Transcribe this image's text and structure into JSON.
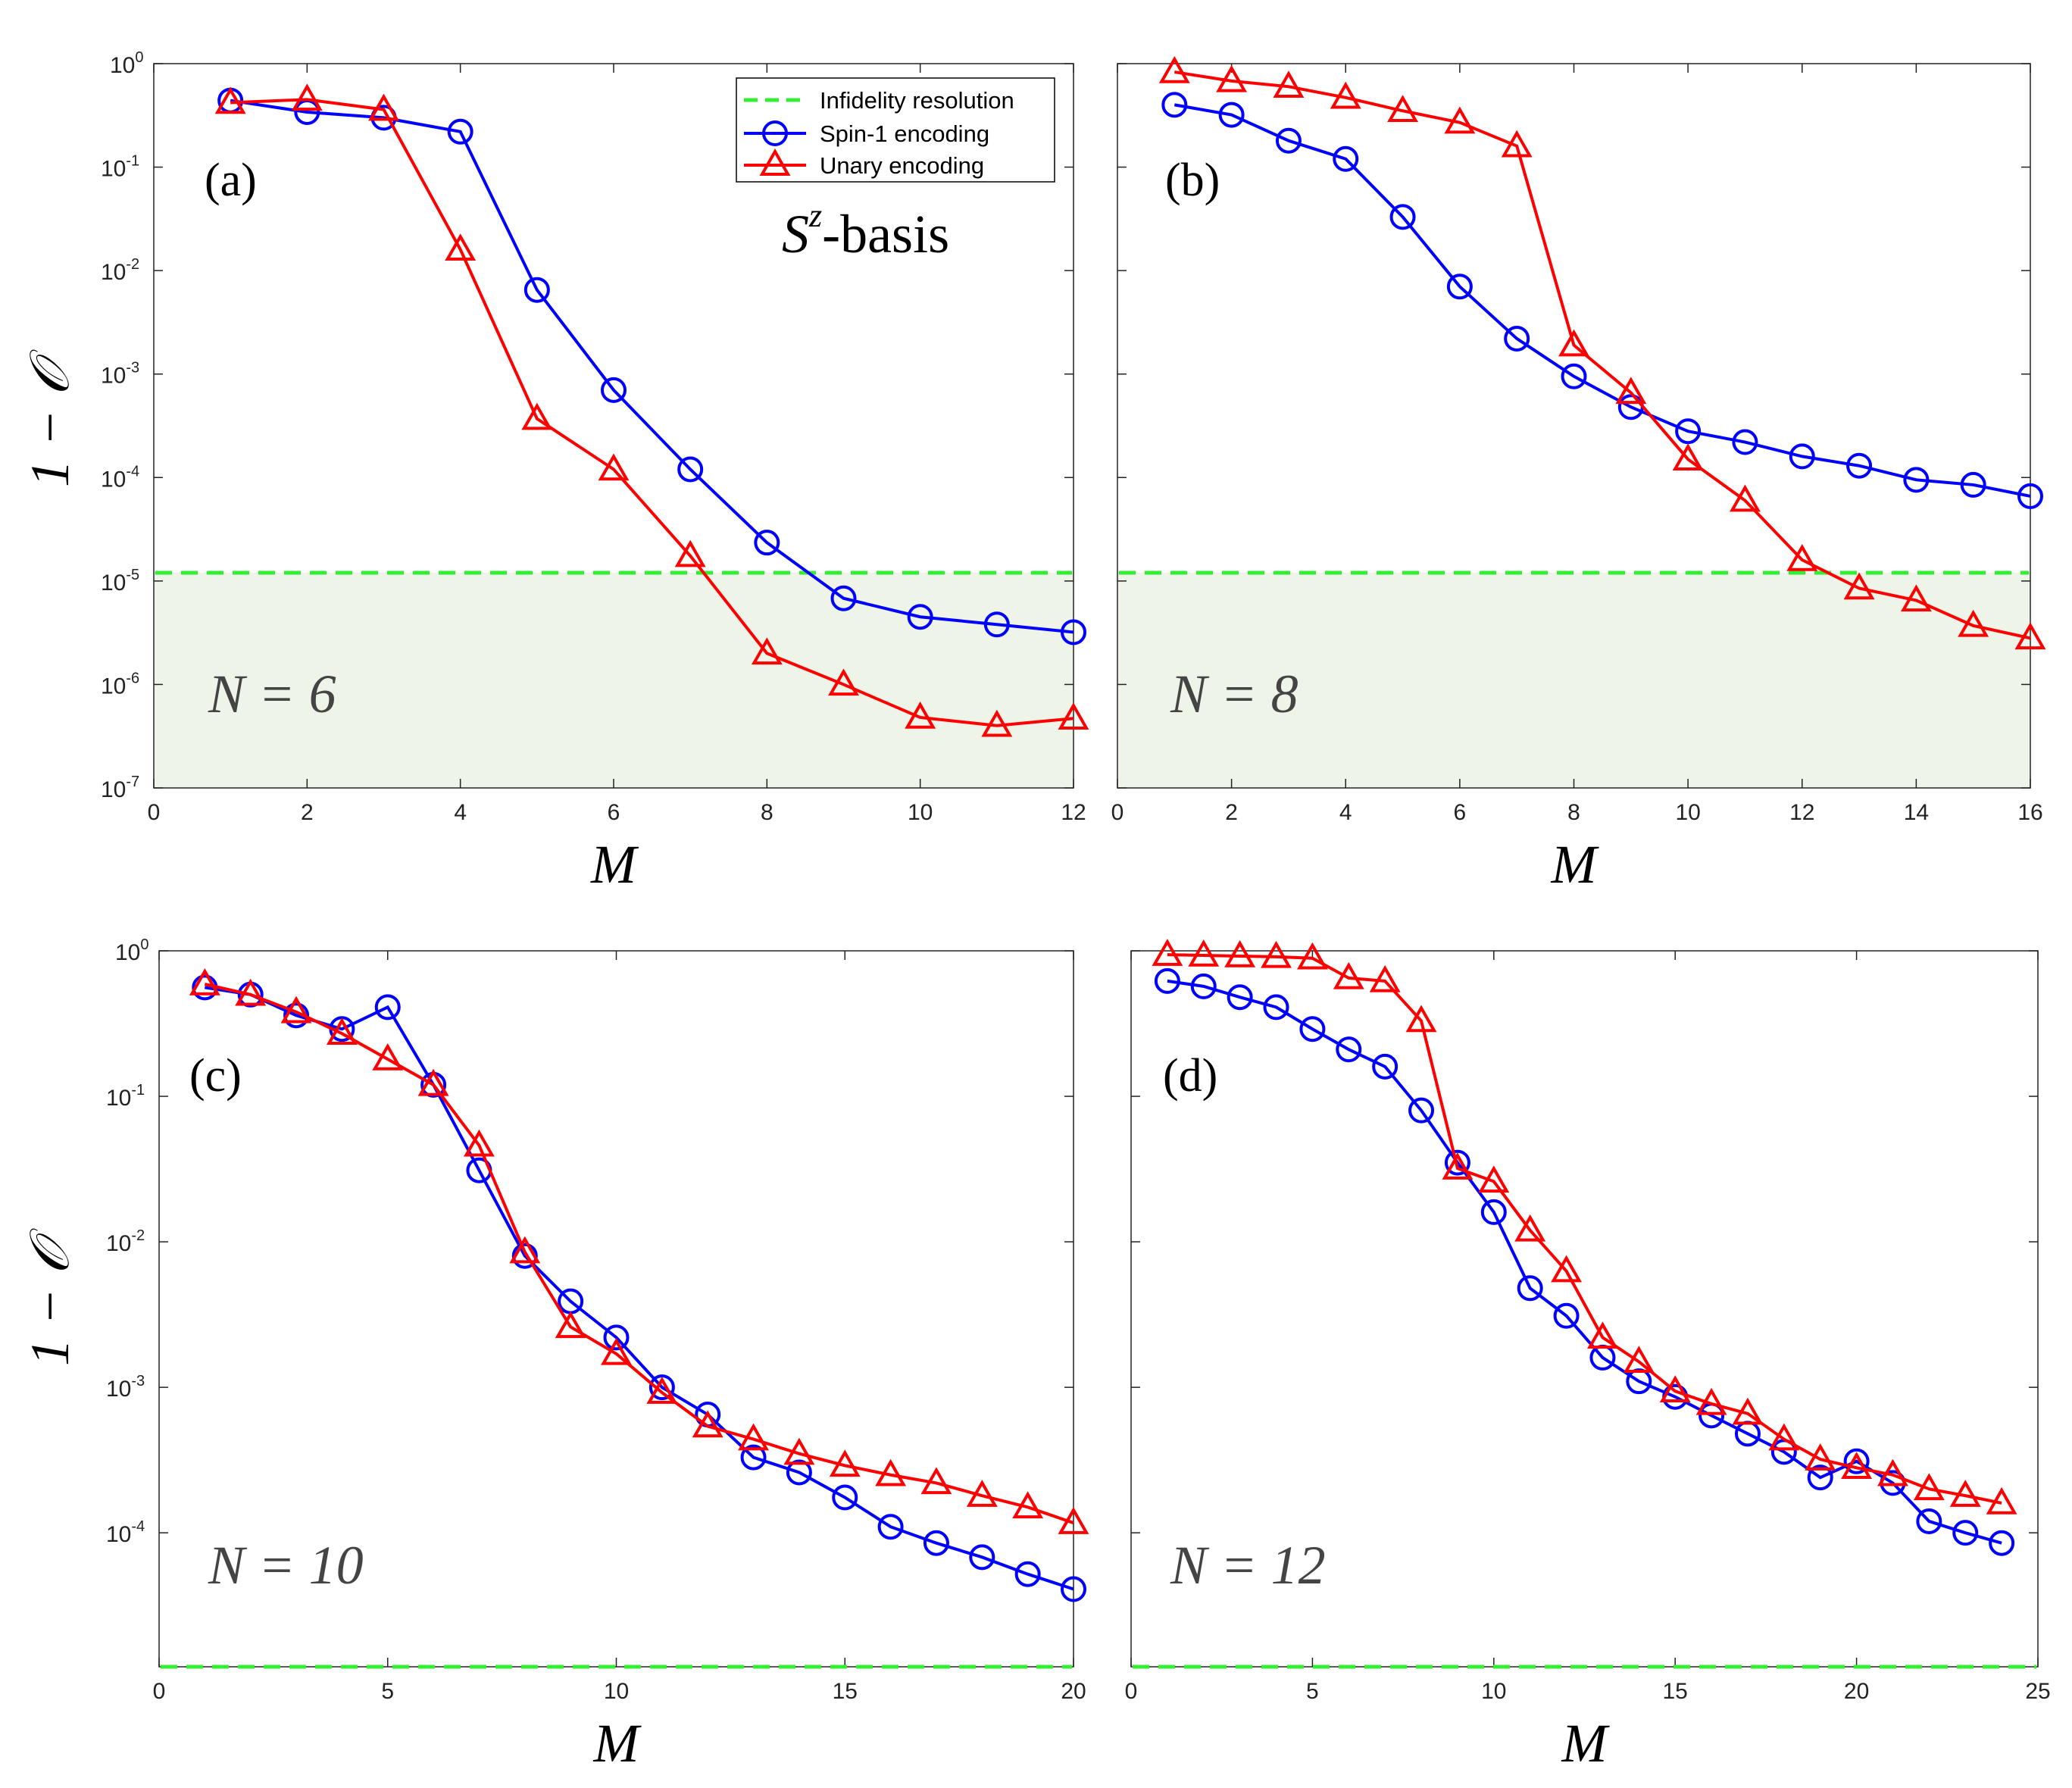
{
  "colors": {
    "spin1": "#0000ff",
    "unary": "#ff0000",
    "resolution": "#33ee33",
    "shade": "#eef4e8"
  },
  "legend": {
    "resolution": "Infidelity resolution",
    "spin1": "Spin-1 encoding",
    "unary": "Unary encoding"
  },
  "basis_label": "-basis",
  "basis_symbol": "S",
  "basis_sup": "z",
  "ylabel": "1 − 𝒪",
  "chart_data": [
    {
      "type": "line",
      "panel": "(a)",
      "n_label": "N = 6",
      "xlabel": "M",
      "ylabel": "1 − 𝒪",
      "yscale": "log",
      "xlim": [
        0,
        12
      ],
      "ylim": [
        1e-07,
        1
      ],
      "xticks": [
        0,
        2,
        4,
        6,
        8,
        10,
        12
      ],
      "yticks": [
        -7,
        -6,
        -5,
        -4,
        -3,
        -2,
        -1,
        0
      ],
      "resolution": 1.2e-05,
      "shaded": true,
      "series": [
        {
          "name": "Spin-1 encoding",
          "x": [
            1,
            2,
            3,
            4,
            5,
            6,
            7,
            8,
            9,
            10,
            11,
            12
          ],
          "values": [
            0.44,
            0.34,
            0.3,
            0.22,
            0.0065,
            0.0007,
            0.00012,
            2.35e-05,
            6.8e-06,
            4.5e-06,
            3.8e-06,
            3.2e-06
          ]
        },
        {
          "name": "Unary encoding",
          "x": [
            1,
            2,
            3,
            4,
            5,
            6,
            7,
            8,
            9,
            10,
            11,
            12
          ],
          "values": [
            0.42,
            0.45,
            0.36,
            0.016,
            0.00037,
            0.00012,
            1.75e-05,
            2e-06,
            1e-06,
            4.8e-07,
            4e-07,
            4.7e-07
          ]
        }
      ]
    },
    {
      "type": "line",
      "panel": "(b)",
      "n_label": "N = 8",
      "xlabel": "M",
      "yscale": "log",
      "xlim": [
        0,
        16
      ],
      "ylim": [
        1e-07,
        1
      ],
      "xticks": [
        0,
        2,
        4,
        6,
        8,
        10,
        12,
        14,
        16
      ],
      "yticks": [],
      "resolution": 1.2e-05,
      "shaded": true,
      "series": [
        {
          "name": "Spin-1 encoding",
          "x": [
            1,
            2,
            3,
            4,
            5,
            6,
            7,
            8,
            9,
            10,
            11,
            12,
            13,
            14,
            15,
            16
          ],
          "values": [
            0.4,
            0.32,
            0.18,
            0.12,
            0.033,
            0.007,
            0.0022,
            0.00095,
            0.00048,
            0.00028,
            0.00022,
            0.00016,
            0.00013,
            9.5e-05,
            8.5e-05,
            6.6e-05
          ]
        },
        {
          "name": "Unary encoding",
          "x": [
            1,
            2,
            3,
            4,
            5,
            6,
            7,
            8,
            9,
            10,
            11,
            12,
            13,
            14,
            15,
            16
          ],
          "values": [
            0.83,
            0.68,
            0.6,
            0.47,
            0.35,
            0.27,
            0.16,
            0.0019,
            0.00066,
            0.00015,
            6e-05,
            1.6e-05,
            8.5e-06,
            6.5e-06,
            3.7e-06,
            2.8e-06
          ]
        }
      ]
    },
    {
      "type": "line",
      "panel": "(c)",
      "n_label": "N = 10",
      "xlabel": "M",
      "ylabel": "1 − 𝒪",
      "yscale": "log",
      "xlim": [
        0,
        20
      ],
      "ylim": [
        1.2e-05,
        1
      ],
      "xticks": [
        0,
        5,
        10,
        15,
        20
      ],
      "yticks": [
        -4,
        -3,
        -2,
        -1,
        0
      ],
      "resolution": 1.2e-05,
      "shaded": false,
      "series": [
        {
          "name": "Spin-1 encoding",
          "x": [
            1,
            2,
            3,
            4,
            5,
            6,
            7,
            8,
            9,
            10,
            11,
            12,
            13,
            14,
            15,
            16,
            17,
            18,
            19,
            20
          ],
          "values": [
            0.56,
            0.5,
            0.36,
            0.29,
            0.41,
            0.12,
            0.031,
            0.008,
            0.0039,
            0.0022,
            0.001,
            0.00065,
            0.00033,
            0.00026,
            0.000175,
            0.00011,
            8.5e-05,
            6.8e-05,
            5.2e-05,
            4.1e-05
          ]
        },
        {
          "name": "Unary encoding",
          "x": [
            1,
            2,
            3,
            4,
            5,
            6,
            7,
            8,
            9,
            10,
            11,
            12,
            13,
            14,
            15,
            16,
            17,
            18,
            19,
            20
          ],
          "values": [
            0.59,
            0.5,
            0.38,
            0.27,
            0.18,
            0.12,
            0.046,
            0.0085,
            0.0026,
            0.0017,
            0.00092,
            0.00054,
            0.00044,
            0.00035,
            0.00029,
            0.00025,
            0.00022,
            0.00018,
            0.00015,
            0.000117
          ]
        }
      ]
    },
    {
      "type": "line",
      "panel": "(d)",
      "n_label": "N = 12",
      "xlabel": "M",
      "yscale": "log",
      "xlim": [
        0,
        25
      ],
      "ylim": [
        1.2e-05,
        1
      ],
      "xticks": [
        0,
        5,
        10,
        15,
        20,
        25
      ],
      "yticks": [],
      "resolution": 1.2e-05,
      "shaded": false,
      "series": [
        {
          "name": "Spin-1 encoding",
          "x": [
            1,
            2,
            3,
            4,
            5,
            6,
            7,
            8,
            9,
            10,
            11,
            12,
            13,
            14,
            15,
            16,
            17,
            18,
            19,
            20,
            21,
            22,
            23,
            24
          ],
          "values": [
            0.62,
            0.57,
            0.48,
            0.41,
            0.29,
            0.21,
            0.16,
            0.08,
            0.035,
            0.016,
            0.0048,
            0.0031,
            0.0016,
            0.0011,
            0.00086,
            0.00064,
            0.00048,
            0.00036,
            0.00024,
            0.00031,
            0.00022,
            0.00012,
            0.0001,
            8.5e-05
          ]
        },
        {
          "name": "Unary encoding",
          "x": [
            1,
            2,
            3,
            4,
            5,
            6,
            7,
            8,
            9,
            10,
            11,
            12,
            13,
            14,
            15,
            16,
            17,
            18,
            19,
            20,
            21,
            22,
            23,
            24
          ],
          "values": [
            0.94,
            0.93,
            0.92,
            0.91,
            0.89,
            0.65,
            0.62,
            0.33,
            0.032,
            0.026,
            0.012,
            0.0063,
            0.0022,
            0.0015,
            0.00094,
            0.00077,
            0.00066,
            0.00044,
            0.00032,
            0.00028,
            0.00025,
            0.0002,
            0.00018,
            0.00016
          ]
        }
      ]
    }
  ]
}
